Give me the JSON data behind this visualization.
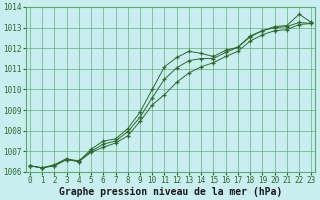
{
  "xlabel": "Graphe pression niveau de la mer (hPa)",
  "background_color": "#c8eef0",
  "plot_bg_color": "#c8eef0",
  "grid_color": "#5aaa6a",
  "line_color": "#2d6a2d",
  "marker": "+",
  "x": [
    0,
    1,
    2,
    3,
    4,
    5,
    6,
    7,
    8,
    9,
    10,
    11,
    12,
    13,
    14,
    15,
    16,
    17,
    18,
    19,
    20,
    21,
    22,
    23
  ],
  "line1": [
    1006.3,
    1006.2,
    1006.3,
    1006.6,
    1006.5,
    1007.1,
    1007.5,
    1007.6,
    1008.1,
    1008.9,
    1010.0,
    1011.1,
    1011.55,
    1011.85,
    1011.75,
    1011.6,
    1011.9,
    1012.05,
    1012.6,
    1012.85,
    1013.05,
    1013.1,
    1013.65,
    1013.25
  ],
  "line2": [
    1006.3,
    1006.2,
    1006.3,
    1006.6,
    1006.55,
    1007.0,
    1007.35,
    1007.5,
    1007.95,
    1008.65,
    1009.6,
    1010.5,
    1011.05,
    1011.4,
    1011.5,
    1011.5,
    1011.8,
    1012.05,
    1012.55,
    1012.85,
    1013.0,
    1013.05,
    1013.25,
    1013.2
  ],
  "line3": [
    1006.3,
    1006.2,
    1006.35,
    1006.65,
    1006.5,
    1006.95,
    1007.2,
    1007.4,
    1007.75,
    1008.45,
    1009.25,
    1009.75,
    1010.35,
    1010.8,
    1011.1,
    1011.3,
    1011.6,
    1011.85,
    1012.35,
    1012.65,
    1012.85,
    1012.9,
    1013.15,
    1013.2
  ],
  "ylim": [
    1006,
    1014
  ],
  "yticks": [
    1006,
    1007,
    1008,
    1009,
    1010,
    1011,
    1012,
    1013,
    1014
  ],
  "xticks": [
    0,
    1,
    2,
    3,
    4,
    5,
    6,
    7,
    8,
    9,
    10,
    11,
    12,
    13,
    14,
    15,
    16,
    17,
    18,
    19,
    20,
    21,
    22,
    23
  ],
  "xlabel_fontsize": 7,
  "tick_fontsize": 5.5,
  "xlabel_color": "#1a1a1a"
}
